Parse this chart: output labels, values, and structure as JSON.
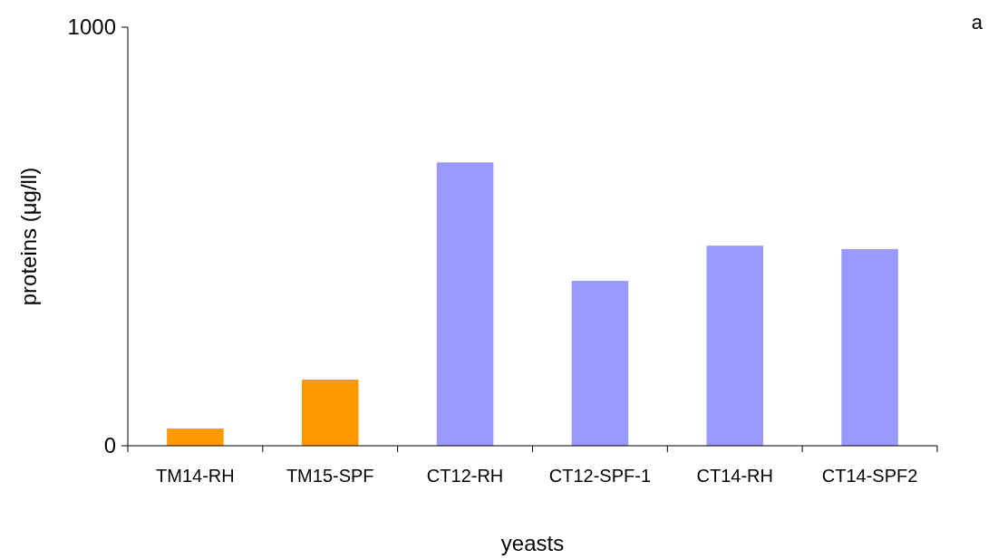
{
  "chart_data": {
    "type": "bar",
    "xlabel": "yeasts",
    "ylabel": "proteins (μg/ll)",
    "annotations": [
      "a"
    ],
    "categories": [
      "TM14-RH",
      "TM15-SPF",
      "CT12-RH",
      "CT12-SPF-1",
      "CT14-RH",
      "CT14-SPF2"
    ],
    "values": [
      41,
      158,
      677,
      394,
      478,
      470
    ],
    "colors": [
      "#ff9900",
      "#ff9900",
      "#9999ff",
      "#9999ff",
      "#9999ff",
      "#9999ff"
    ],
    "ylim": [
      0,
      1000
    ],
    "yticks": [
      0,
      1000
    ],
    "grid": false
  }
}
